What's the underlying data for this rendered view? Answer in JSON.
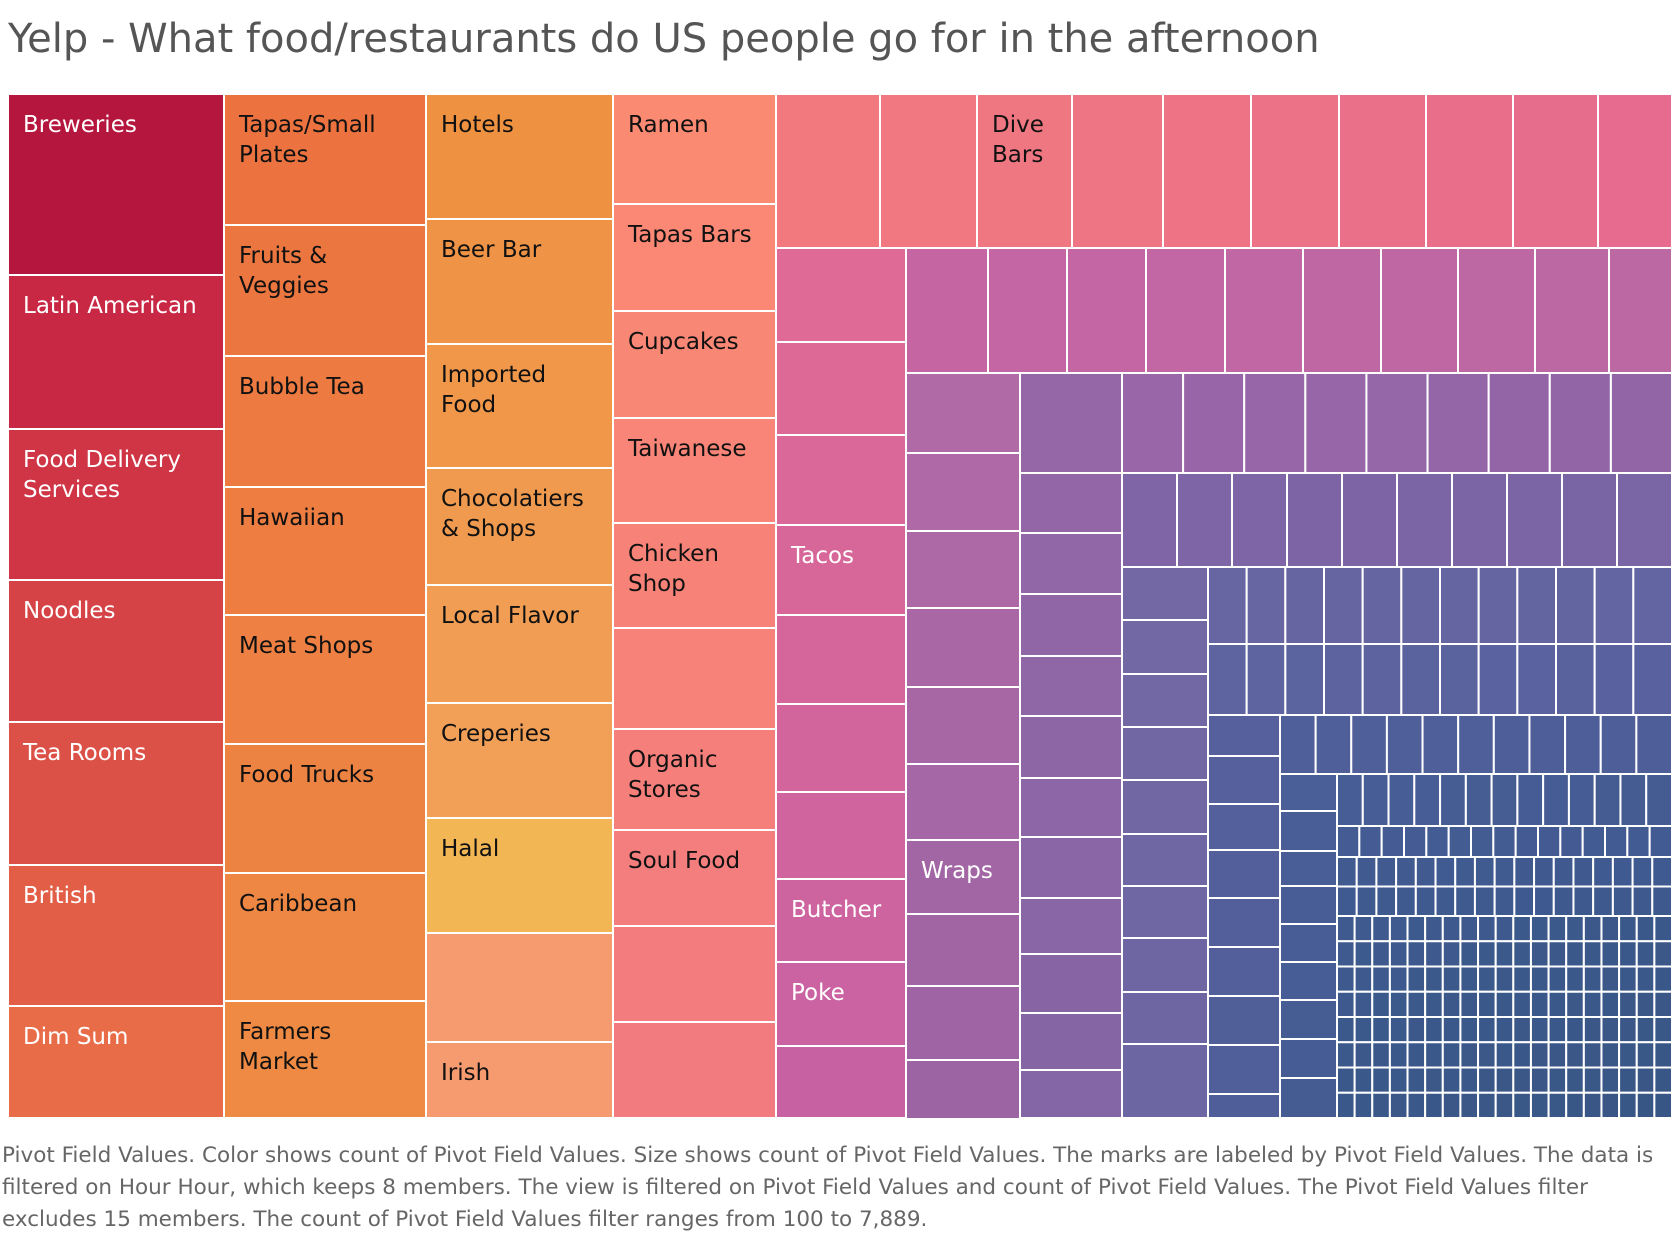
{
  "title": "Yelp - What food/restaurants do US people go for in the afternoon",
  "caption": "Pivot Field Values.  Color shows count of Pivot Field Values.  Size shows count of Pivot Field Values.  The marks are labeled by Pivot Field Values. The data is filtered on Hour Hour, which keeps 8 members. The view is filtered on Pivot Field Values and count of Pivot Field Values. The Pivot Field Values filter excludes 15 members. The count of Pivot Field Values filter ranges from 100 to 7,889.",
  "chart_data": {
    "type": "treemap",
    "title": "Yelp - What food/restaurants do US people go for in the afternoon",
    "size_measure": "count of Pivot Field Values",
    "color_measure": "count of Pivot Field Values",
    "count_filter_range": [
      100,
      7889
    ],
    "color_scale": [
      "#b5163e",
      "#e8573e",
      "#f0b654",
      "#f07e7d",
      "#b763a3",
      "#7c65a6",
      "#3f5d91"
    ],
    "labeled_items": [
      "Breweries",
      "Latin American",
      "Food Delivery Services",
      "Noodles",
      "Tea Rooms",
      "British",
      "Dim Sum",
      "Tapas/Small Plates",
      "Fruits & Veggies",
      "Bubble Tea",
      "Hawaiian",
      "Meat Shops",
      "Food Trucks",
      "Caribbean",
      "Farmers Market",
      "Hotels",
      "Beer Bar",
      "Imported Food",
      "Chocolatiers & Shops",
      "Local Flavor",
      "Creperies",
      "Halal",
      "Irish",
      "Ramen",
      "Tapas Bars",
      "Cupcakes",
      "Taiwanese",
      "Chicken Shop",
      "Organic Stores",
      "Soul Food",
      "Dive Bars",
      "Tacos",
      "Butcher",
      "Poke",
      "Wraps"
    ]
  }
}
